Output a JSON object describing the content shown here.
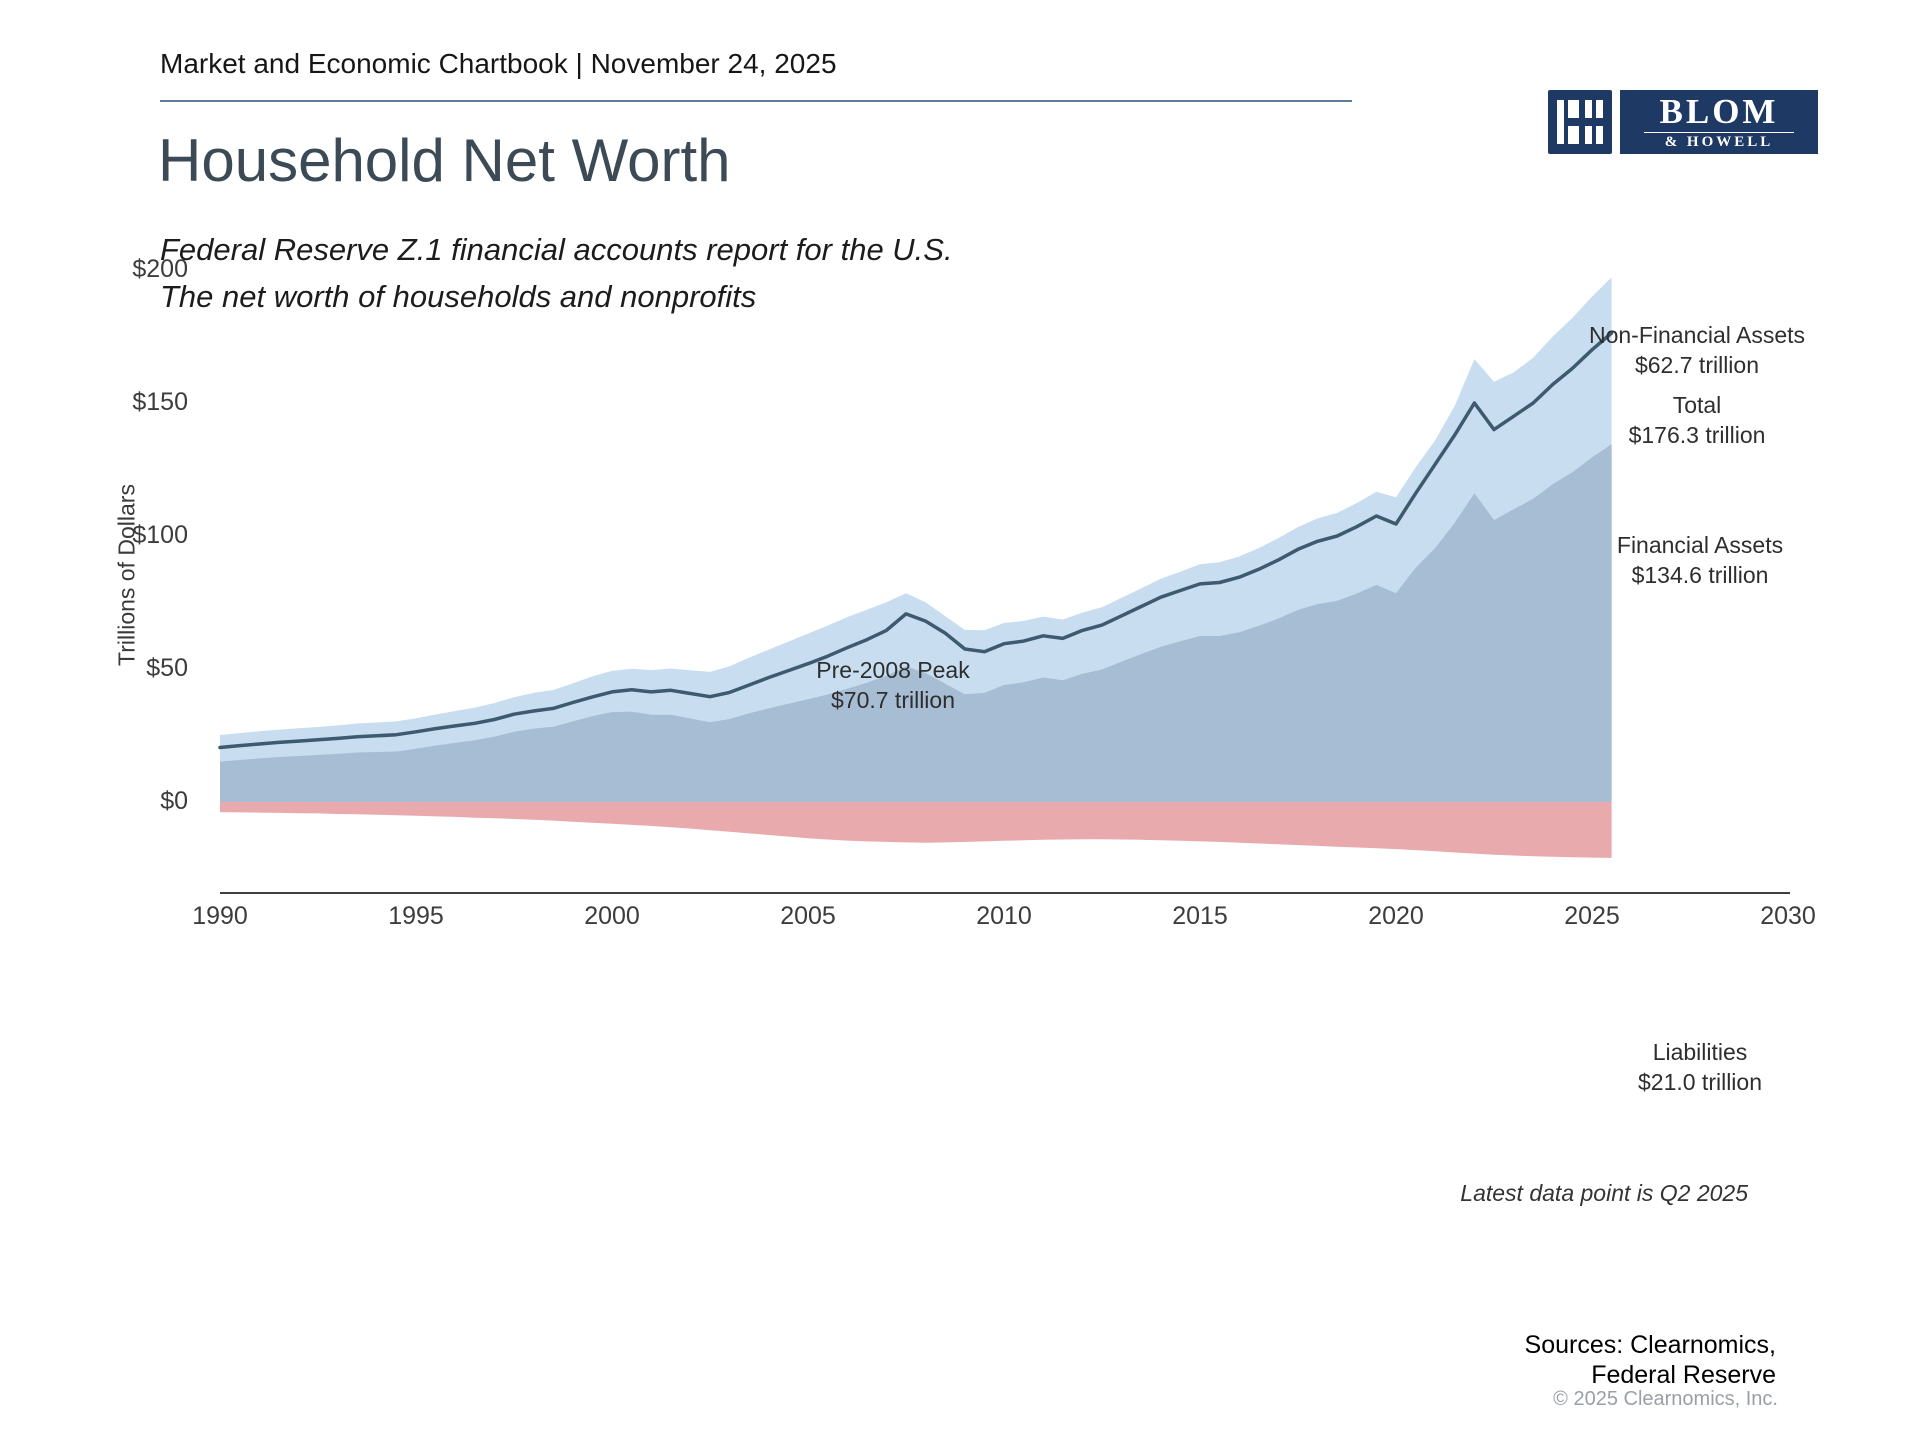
{
  "header": {
    "chartbook_line": "Market and Economic Chartbook | November 24, 2025"
  },
  "logo": {
    "icon": "blom-howell-monogram-icon",
    "name_top": "BLOM",
    "name_bottom": "& HOWELL"
  },
  "title": "Household Net Worth",
  "subtitle": {
    "line1": "Federal Reserve Z.1 financial accounts report for the U.S.",
    "line2": "The net worth of households and nonprofits"
  },
  "colors": {
    "area_total_assets": "#c8ddf0",
    "area_financial_assets": "#a6bdd3",
    "area_liabilities": "#e9aaae",
    "net_worth_line": "#3d5a6e",
    "axis": "#3f3f3f",
    "brand_navy": "#1e3964",
    "title_color": "#3b4a54"
  },
  "chart_data": {
    "type": "area",
    "title": "Household Net Worth",
    "ylabel": "Trillions of Dollars",
    "units": "trillions of USD",
    "grid": false,
    "xlim": [
      1990,
      2030
    ],
    "ylim": [
      -30,
      205
    ],
    "x_ticks": [
      1990,
      1995,
      2000,
      2005,
      2010,
      2015,
      2020,
      2025,
      2030
    ],
    "y_ticks": [
      0,
      50,
      100,
      150,
      200
    ],
    "y_tick_labels": [
      "$0",
      "$50",
      "$100",
      "$150",
      "$200"
    ],
    "x_start": 1990,
    "x_step": 0.5,
    "series": [
      {
        "name": "Financial Assets",
        "role": "area_from_zero",
        "values": [
          15.2,
          15.8,
          16.4,
          16.9,
          17.3,
          17.7,
          18.1,
          18.6,
          18.8,
          19.0,
          20.0,
          21.2,
          22.2,
          23.2,
          24.6,
          26.4,
          27.6,
          28.3,
          30.3,
          32.3,
          33.8,
          34.0,
          32.8,
          32.8,
          31.4,
          30.0,
          31.2,
          33.4,
          35.2,
          36.9,
          38.6,
          40.4,
          42.6,
          44.8,
          47.4,
          51.0,
          48.5,
          44.5,
          40.5,
          41.0,
          44.0,
          45.0,
          46.8,
          45.8,
          48.2,
          49.8,
          52.8,
          55.6,
          58.4,
          60.4,
          62.4,
          62.4,
          63.8,
          66.2,
          69.0,
          72.2,
          74.4,
          75.6,
          78.4,
          81.6,
          78.5,
          88.0,
          95.5,
          105.0,
          116.0,
          106.0,
          110.0,
          114.0,
          119.5,
          124.0,
          129.5,
          134.6
        ]
      },
      {
        "name": "Non-Financial Assets",
        "role": "area_stacked_on_financial",
        "values": [
          10.0,
          10.1,
          10.2,
          10.3,
          10.4,
          10.5,
          10.7,
          10.9,
          11.1,
          11.3,
          11.5,
          11.7,
          12.0,
          12.3,
          12.6,
          13.0,
          13.4,
          13.8,
          14.3,
          14.9,
          15.5,
          16.1,
          16.8,
          17.4,
          18.1,
          18.9,
          19.8,
          20.9,
          22.1,
          23.4,
          24.7,
          25.9,
          26.9,
          27.5,
          27.7,
          27.5,
          26.6,
          25.4,
          24.2,
          23.6,
          23.3,
          23.1,
          22.9,
          22.8,
          23.0,
          23.4,
          24.0,
          24.7,
          25.5,
          26.2,
          27.0,
          27.7,
          28.5,
          29.3,
          30.2,
          31.2,
          32.2,
          33.1,
          34.0,
          35.0,
          36.0,
          37.8,
          40.5,
          44.0,
          50.5,
          52.0,
          51.5,
          53.0,
          55.5,
          58.0,
          60.5,
          62.7
        ]
      },
      {
        "name": "Total (Net Worth)",
        "role": "line",
        "values": [
          20.5,
          21.2,
          21.8,
          22.4,
          22.9,
          23.4,
          23.9,
          24.5,
          24.9,
          25.3,
          26.4,
          27.6,
          28.6,
          29.6,
          31.0,
          33.0,
          34.2,
          35.2,
          37.4,
          39.5,
          41.4,
          42.2,
          41.4,
          42.0,
          40.8,
          39.6,
          41.2,
          44.0,
          46.8,
          49.4,
          52.0,
          54.8,
          58.0,
          61.0,
          64.5,
          70.7,
          68.0,
          63.5,
          57.5,
          56.5,
          59.5,
          60.5,
          62.5,
          61.5,
          64.5,
          66.5,
          70.0,
          73.5,
          77.0,
          79.5,
          82.0,
          82.5,
          84.5,
          87.5,
          91.0,
          95.0,
          98.0,
          100.0,
          103.5,
          107.5,
          104.5,
          116.0,
          127.0,
          138.0,
          150.0,
          140.0,
          145.0,
          150.0,
          157.0,
          163.0,
          170.0,
          176.3
        ]
      },
      {
        "name": "Liabilities",
        "role": "area_below_zero",
        "values": [
          3.8,
          3.9,
          4.0,
          4.1,
          4.2,
          4.3,
          4.5,
          4.6,
          4.8,
          5.0,
          5.2,
          5.4,
          5.6,
          5.9,
          6.1,
          6.4,
          6.7,
          7.0,
          7.4,
          7.8,
          8.2,
          8.6,
          9.0,
          9.5,
          10.0,
          10.6,
          11.2,
          11.8,
          12.4,
          13.0,
          13.6,
          14.1,
          14.5,
          14.8,
          15.0,
          15.2,
          15.3,
          15.2,
          15.0,
          14.8,
          14.6,
          14.4,
          14.2,
          14.1,
          14.0,
          14.0,
          14.1,
          14.2,
          14.4,
          14.6,
          14.8,
          15.0,
          15.3,
          15.6,
          15.9,
          16.2,
          16.5,
          16.8,
          17.1,
          17.4,
          17.7,
          18.1,
          18.5,
          19.0,
          19.4,
          19.8,
          20.1,
          20.4,
          20.6,
          20.8,
          20.9,
          21.0
        ]
      }
    ],
    "annotations": {
      "pre_2008_peak": {
        "label": "Pre-2008 Peak",
        "value": "$70.7 trillion"
      },
      "nonfinancial": {
        "label": "Non-Financial Assets",
        "value": "$62.7 trillion"
      },
      "total": {
        "label": "Total",
        "value": "$176.3 trillion"
      },
      "financial": {
        "label": "Financial Assets",
        "value": "$134.6 trillion"
      },
      "liabilities": {
        "label": "Liabilities",
        "value": "$21.0 trillion"
      }
    }
  },
  "footnote": "Latest data point is Q2 2025",
  "sources": {
    "line1": "Sources: Clearnomics,",
    "line2": "Federal Reserve"
  },
  "copyright": "© 2025 Clearnomics, Inc."
}
